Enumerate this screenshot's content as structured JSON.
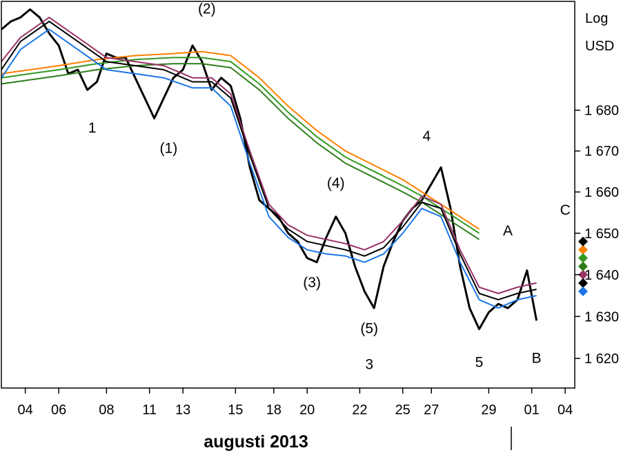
{
  "chart_data": {
    "type": "line",
    "title": "augusti 2013",
    "ylabel_lines": [
      "Log",
      "USD"
    ],
    "y_scale": "log",
    "ylim": [
      1613,
      1707
    ],
    "xlim": [
      0,
      60
    ],
    "grid": false,
    "y_ticks": [
      1620,
      1630,
      1640,
      1650,
      1660,
      1670,
      1680
    ],
    "y_tick_labels": [
      "1 620",
      "1 630",
      "1 640",
      "1 650",
      "1 660",
      "1 670",
      "1 680"
    ],
    "x_ticks": [
      {
        "label": "04",
        "x": 2.5
      },
      {
        "label": "06",
        "x": 6
      },
      {
        "label": "08",
        "x": 11
      },
      {
        "label": "11",
        "x": 15.5
      },
      {
        "label": "13",
        "x": 19
      },
      {
        "label": "15",
        "x": 24.5
      },
      {
        "label": "18",
        "x": 28.5
      },
      {
        "label": "20",
        "x": 32
      },
      {
        "label": "22",
        "x": 37.5
      },
      {
        "label": "25",
        "x": 42
      },
      {
        "label": "27",
        "x": 45
      },
      {
        "label": "29",
        "x": 51
      },
      {
        "label": "01",
        "x": 55.5
      },
      {
        "label": "04",
        "x": 59
      }
    ],
    "colors": {
      "price": "#000000",
      "orange": "#ff7f00",
      "green": "#339922",
      "darkgreen": "#2e7d1a",
      "purple": "#993366",
      "black_ma": "#000000",
      "blue": "#1a75e8"
    },
    "series": [
      {
        "key": "price",
        "x": [
          0,
          1,
          2,
          3,
          4,
          5,
          6,
          7,
          8,
          9,
          10,
          11,
          12,
          13,
          14,
          15,
          16,
          17,
          18,
          19,
          20,
          21,
          22,
          23,
          24,
          25,
          26,
          27,
          28,
          29,
          30,
          31,
          32,
          33,
          34,
          35,
          36,
          37,
          38,
          39,
          40,
          41,
          42,
          43,
          44,
          45,
          46,
          47,
          48,
          49,
          50,
          51,
          52,
          53,
          54,
          55,
          56
        ],
        "y": [
          1700,
          1702,
          1703,
          1705,
          1703,
          1699,
          1696,
          1689,
          1690,
          1685,
          1687,
          1694,
          1693,
          1693,
          1688,
          1683,
          1678,
          1683,
          1688,
          1690,
          1696,
          1692,
          1685,
          1688,
          1686,
          1678,
          1666,
          1658,
          1656,
          1654,
          1650,
          1648,
          1644,
          1643,
          1649,
          1654,
          1650,
          1642,
          1636,
          1632,
          1642,
          1648,
          1653,
          1656,
          1658,
          1662,
          1666,
          1656,
          1642,
          1632,
          1627,
          1631,
          1633,
          1632,
          1634,
          1641,
          1629
        ]
      },
      {
        "key": "orange",
        "x": [
          0,
          3,
          6,
          10,
          14,
          18,
          21,
          24,
          27,
          30,
          33,
          36,
          39,
          42,
          44,
          46,
          48,
          50
        ],
        "y": [
          1689,
          1690,
          1691,
          1692.5,
          1693.5,
          1694,
          1694.5,
          1693.5,
          1688,
          1681,
          1675,
          1670,
          1666.5,
          1663,
          1660,
          1657,
          1654,
          1651
        ]
      },
      {
        "key": "green",
        "x": [
          0,
          3,
          6,
          10,
          14,
          18,
          21,
          24,
          27,
          30,
          33,
          36,
          39,
          42,
          44,
          46,
          48,
          50
        ],
        "y": [
          1688,
          1689,
          1690,
          1691.5,
          1692.5,
          1693,
          1693,
          1692,
          1686.5,
          1679.5,
          1673.5,
          1668.5,
          1665,
          1661.5,
          1659,
          1656,
          1653,
          1650
        ]
      },
      {
        "key": "darkgreen",
        "x": [
          0,
          3,
          6,
          10,
          14,
          18,
          21,
          24,
          27,
          30,
          33,
          36,
          39,
          42,
          44,
          46,
          48,
          50
        ],
        "y": [
          1686.5,
          1687.5,
          1688.5,
          1690,
          1691,
          1691.5,
          1691.5,
          1690.5,
          1685,
          1678,
          1672,
          1667,
          1663.5,
          1660,
          1657.5,
          1654.5,
          1651.5,
          1648.5
        ]
      },
      {
        "key": "purple",
        "x": [
          0,
          2,
          5,
          8,
          11,
          14,
          17,
          20,
          22,
          24,
          26,
          28,
          30,
          32,
          34,
          36,
          38,
          40,
          42,
          44,
          46,
          48,
          50,
          52,
          54,
          56
        ],
        "y": [
          1692,
          1698,
          1703,
          1698,
          1693,
          1692,
          1691,
          1688,
          1688,
          1684,
          1670,
          1657,
          1652,
          1649.5,
          1648.5,
          1647.5,
          1646,
          1648,
          1653,
          1659,
          1657,
          1646,
          1637,
          1635.5,
          1637,
          1638
        ]
      },
      {
        "key": "black_ma",
        "x": [
          0,
          2,
          5,
          8,
          11,
          14,
          17,
          20,
          22,
          24,
          26,
          28,
          30,
          32,
          34,
          36,
          38,
          40,
          42,
          44,
          46,
          48,
          50,
          52,
          54,
          56
        ],
        "y": [
          1690,
          1697,
          1702,
          1697,
          1692,
          1691,
          1690,
          1687,
          1687,
          1683,
          1669,
          1656,
          1651,
          1648,
          1647,
          1646,
          1644.5,
          1646.5,
          1651.5,
          1657.5,
          1656,
          1645,
          1635.5,
          1634,
          1635.5,
          1636.5
        ]
      },
      {
        "key": "blue",
        "x": [
          0,
          2,
          5,
          8,
          11,
          14,
          17,
          20,
          22,
          24,
          26,
          28,
          30,
          32,
          34,
          36,
          38,
          40,
          42,
          44,
          46,
          48,
          50,
          52,
          54,
          56
        ],
        "y": [
          1688,
          1695,
          1700,
          1695,
          1690,
          1689,
          1688,
          1685.5,
          1685.5,
          1681,
          1667,
          1654,
          1649,
          1646,
          1645,
          1644.5,
          1643,
          1645,
          1650,
          1656,
          1654,
          1643,
          1634,
          1632,
          1634,
          1635
        ]
      }
    ],
    "end_markers": [
      {
        "key": "purple",
        "y": 1640
      },
      {
        "key": "black_ma",
        "y": 1638
      },
      {
        "key": "blue",
        "y": 1636
      },
      {
        "key": "orange",
        "y": 1646
      },
      {
        "key": "green",
        "y": 1644
      },
      {
        "key": "black_ma",
        "y": 1648
      },
      {
        "key": "darkgreen",
        "y": 1642
      }
    ],
    "annotations": [
      {
        "text": "(2)",
        "x": 21.5,
        "y": 1704
      },
      {
        "text": "1",
        "x": 9.5,
        "y": 1674.5
      },
      {
        "text": "(1)",
        "x": 17.5,
        "y": 1669.5
      },
      {
        "text": "(4)",
        "x": 35,
        "y": 1661
      },
      {
        "text": "4",
        "x": 44.5,
        "y": 1672.5
      },
      {
        "text": "(3)",
        "x": 32.5,
        "y": 1637
      },
      {
        "text": "(5)",
        "x": 38.5,
        "y": 1626
      },
      {
        "text": "3",
        "x": 38.5,
        "y": 1617.5
      },
      {
        "text": "5",
        "x": 50,
        "y": 1618
      },
      {
        "text": "A",
        "x": 53,
        "y": 1649.5
      },
      {
        "text": "B",
        "x": 56,
        "y": 1619
      },
      {
        "text": "C",
        "x": 59,
        "y": 1654.5
      }
    ]
  }
}
